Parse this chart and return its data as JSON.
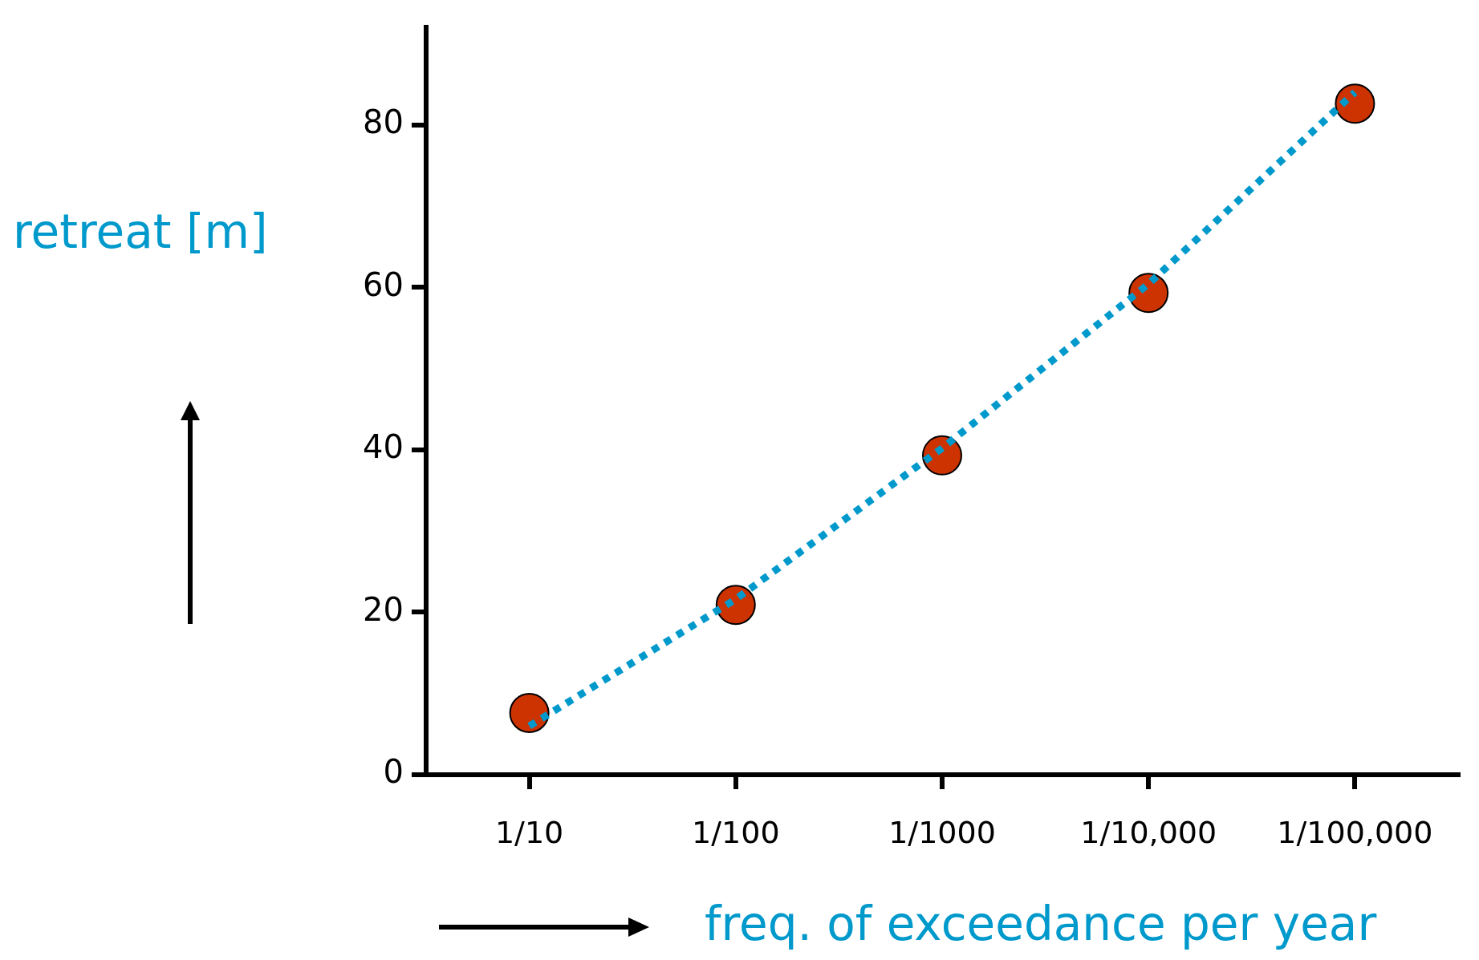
{
  "chart_data": {
    "type": "scatter",
    "xlabel": "freq. of exceedance per year",
    "ylabel": "retreat [m]",
    "categories": [
      "1/10",
      "1/100",
      "1/1000",
      "1/10,000",
      "1/100,000"
    ],
    "ylim": [
      0,
      92
    ],
    "yticks": [
      0,
      20,
      40,
      60,
      80
    ],
    "grid": false,
    "legend": false,
    "series": [
      {
        "type": "line",
        "color": "#0099cc",
        "line_style": "dotted",
        "marker": "none",
        "values": [
          6,
          21.6,
          40.2,
          60.4,
          84
        ]
      },
      {
        "type": "scatter",
        "color": "#cc3300",
        "marker": "circle",
        "values": [
          7.6,
          20.9,
          39.3,
          59.3,
          82.6
        ]
      }
    ]
  }
}
